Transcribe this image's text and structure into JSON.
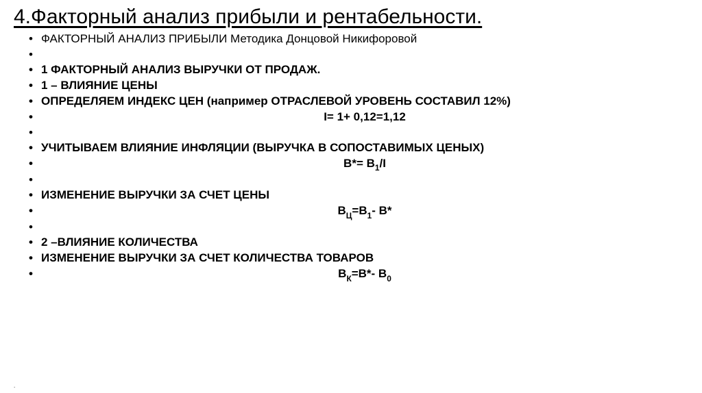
{
  "title": "4.Факторный анализ прибыли и рентабельности.",
  "lines": {
    "l1": "ФАКТОРНЫЙ АНАЛИЗ ПРИБЫЛИ Методика Донцовой Никифоровой",
    "l2": "1 ФАКТОРНЫЙ АНАЛИЗ ВЫРУЧКИ ОТ ПРОДАЖ.",
    "l3": "1 – ВЛИЯНИЕ ЦЕНЫ",
    "l4": "ОПРЕДЕЛЯЕМ ИНДЕКС ЦЕН (например ОТРАСЛЕВОЙ УРОВЕНЬ СОСТАВИЛ 12%)",
    "f1": "I= 1+ 0,12=1,12",
    "l5": " УЧИТЫВАЕМ ВЛИЯНИЕ ИНФЛЯЦИИ (ВЫРУЧКА В СОПОСТАВИМЫХ ЦЕНЫХ)",
    "f2_left": "В*= В",
    "f2_sub": "1",
    "f2_right": "/I",
    "l6": "ИЗМЕНЕНИЕ ВЫРУЧКИ ЗА СЧЕТ ЦЕНЫ",
    "f3_l": "В",
    "f3_s1": "Ц",
    "f3_m": "=В",
    "f3_s2": "1",
    "f3_r": "- В*",
    "l7": "2 –ВЛИЯНИЕ КОЛИЧЕСТВА",
    "l8": "ИЗМЕНЕНИЕ ВЫРУЧКИ ЗА СЧЕТ КОЛИЧЕСТВА ТОВАРОВ",
    "f4_l": "В",
    "f4_s1": "К",
    "f4_m": "=В*- В",
    "f4_s2": "0"
  },
  "colors": {
    "text": "#000000",
    "red": "#c00000",
    "background": "#ffffff"
  },
  "typography": {
    "title_fontsize": 30,
    "body_fontsize": 17,
    "formula_fontsize": 18
  }
}
